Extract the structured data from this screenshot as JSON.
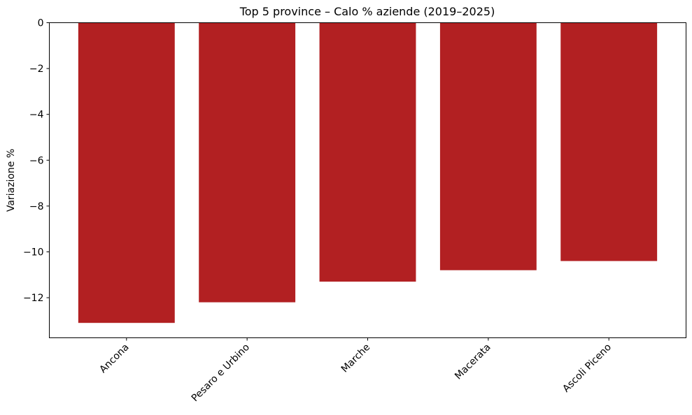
{
  "chart_data": {
    "type": "bar",
    "title": "Top 5 province – Calo % aziende (2019–2025)",
    "xlabel": "",
    "ylabel": "Variazione %",
    "categories": [
      "Ancona",
      "Pesaro e Urbino",
      "Marche",
      "Macerata",
      "Ascoli Piceno"
    ],
    "values": [
      -13.1,
      -12.2,
      -11.3,
      -10.8,
      -10.4
    ],
    "ylim": [
      -13.75,
      0
    ],
    "yticks": [
      0,
      -2,
      -4,
      -6,
      -8,
      -10,
      -12
    ],
    "ytick_labels": [
      "0",
      "−2",
      "−4",
      "−6",
      "−8",
      "−10",
      "−12"
    ],
    "grid": false,
    "bar_color": "#b22022",
    "xtick_rotation_deg": 45
  }
}
